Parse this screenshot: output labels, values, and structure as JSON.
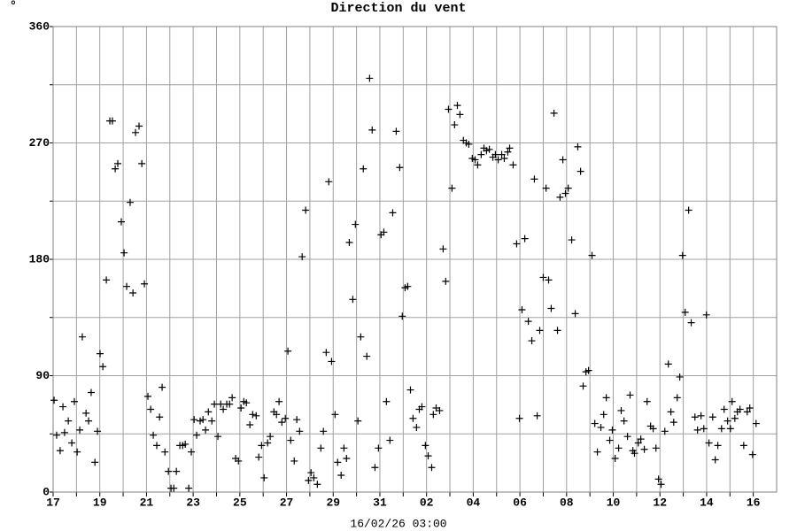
{
  "chart_data": {
    "type": "scatter",
    "title": "Direction du vent",
    "y_unit_label": "°",
    "xlabel": "16/02/26 03:00",
    "marker": "+",
    "color": "#000000",
    "grid": true,
    "xlim": [
      0,
      31
    ],
    "ylim": [
      0,
      360
    ],
    "yticks": [
      0,
      {
        "value": 45,
        "label": null
      },
      90,
      {
        "value": 135,
        "label": null
      },
      180,
      {
        "value": 225,
        "label": null
      },
      270,
      {
        "value": 315,
        "label": null
      },
      360
    ],
    "xticks": [
      {
        "value": 0,
        "label": "17"
      },
      {
        "value": 1,
        "label": null
      },
      {
        "value": 2,
        "label": "19"
      },
      {
        "value": 3,
        "label": null
      },
      {
        "value": 4,
        "label": "21"
      },
      {
        "value": 5,
        "label": null
      },
      {
        "value": 6,
        "label": "23"
      },
      {
        "value": 7,
        "label": null
      },
      {
        "value": 8,
        "label": "25"
      },
      {
        "value": 9,
        "label": null
      },
      {
        "value": 10,
        "label": "27"
      },
      {
        "value": 11,
        "label": null
      },
      {
        "value": 12,
        "label": "29"
      },
      {
        "value": 13,
        "label": null
      },
      {
        "value": 14,
        "label": "31"
      },
      {
        "value": 15,
        "label": null
      },
      {
        "value": 16,
        "label": "02"
      },
      {
        "value": 17,
        "label": null
      },
      {
        "value": 18,
        "label": "04"
      },
      {
        "value": 19,
        "label": null
      },
      {
        "value": 20,
        "label": "06"
      },
      {
        "value": 21,
        "label": null
      },
      {
        "value": 22,
        "label": "08"
      },
      {
        "value": 23,
        "label": null
      },
      {
        "value": 24,
        "label": "10"
      },
      {
        "value": 25,
        "label": null
      },
      {
        "value": 26,
        "label": "12"
      },
      {
        "value": 27,
        "label": null
      },
      {
        "value": 28,
        "label": "14"
      },
      {
        "value": 29,
        "label": null
      },
      {
        "value": 30,
        "label": "16"
      }
    ],
    "x": [
      0.04,
      0.15,
      0.3,
      0.42,
      0.49,
      0.65,
      0.8,
      0.91,
      1.03,
      1.14,
      1.25,
      1.41,
      1.52,
      1.63,
      1.79,
      1.9,
      2.01,
      2.13,
      2.28,
      2.43,
      2.54,
      2.66,
      2.77,
      2.92,
      3.04,
      3.15,
      3.3,
      3.42,
      3.53,
      3.68,
      3.8,
      3.91,
      4.06,
      4.18,
      4.29,
      4.44,
      4.56,
      4.67,
      4.79,
      4.94,
      5.05,
      5.17,
      5.28,
      5.43,
      5.55,
      5.66,
      5.81,
      5.92,
      6.04,
      6.15,
      6.3,
      6.42,
      6.53,
      6.65,
      6.8,
      6.91,
      7.06,
      7.18,
      7.29,
      7.44,
      7.56,
      7.67,
      7.82,
      7.94,
      8.05,
      8.17,
      8.28,
      8.43,
      8.55,
      8.7,
      8.81,
      8.93,
      9.04,
      9.19,
      9.3,
      9.46,
      9.57,
      9.68,
      9.8,
      9.95,
      10.06,
      10.18,
      10.33,
      10.44,
      10.56,
      10.67,
      10.82,
      10.94,
      11.05,
      11.17,
      11.32,
      11.47,
      11.58,
      11.7,
      11.81,
      11.93,
      12.08,
      12.19,
      12.34,
      12.46,
      12.57,
      12.69,
      12.84,
      12.95,
      13.06,
      13.18,
      13.29,
      13.44,
      13.56,
      13.67,
      13.79,
      13.94,
      14.05,
      14.17,
      14.28,
      14.43,
      14.55,
      14.7,
      14.85,
      14.96,
      15.08,
      15.19,
      15.31,
      15.42,
      15.57,
      15.69,
      15.8,
      15.95,
      16.07,
      16.22,
      16.29,
      16.41,
      16.56,
      16.71,
      16.82,
      16.94,
      17.09,
      17.2,
      17.32,
      17.43,
      17.58,
      17.7,
      17.81,
      17.96,
      18.08,
      18.19,
      18.34,
      18.46,
      18.57,
      18.69,
      18.84,
      18.95,
      19.07,
      19.22,
      19.33,
      19.48,
      19.56,
      19.71,
      19.86,
      19.98,
      20.09,
      20.21,
      20.36,
      20.51,
      20.62,
      20.74,
      20.85,
      21.0,
      21.12,
      21.23,
      21.34,
      21.46,
      21.61,
      21.72,
      21.84,
      21.95,
      22.07,
      22.22,
      22.37,
      22.48,
      22.6,
      22.71,
      22.83,
      22.94,
      23.09,
      23.21,
      23.32,
      23.47,
      23.59,
      23.7,
      23.85,
      23.96,
      24.08,
      24.23,
      24.34,
      24.46,
      24.61,
      24.72,
      24.84,
      24.91,
      25.07,
      25.18,
      25.33,
      25.45,
      25.6,
      25.71,
      25.83,
      25.94,
      26.05,
      26.21,
      26.36,
      26.47,
      26.59,
      26.74,
      26.85,
      26.97,
      27.08,
      27.23,
      27.34,
      27.5,
      27.61,
      27.76,
      27.88,
      27.99,
      28.1,
      28.26,
      28.37,
      28.48,
      28.64,
      28.75,
      28.9,
      29.02,
      29.09,
      29.21,
      29.32,
      29.43,
      29.59,
      29.74,
      29.85,
      29.97,
      30.12
    ],
    "values": [
      71,
      44,
      32,
      66,
      46,
      55,
      38,
      70,
      31,
      48,
      120,
      61,
      55,
      77,
      23,
      47,
      107,
      97,
      164,
      287,
      287,
      250,
      254,
      209,
      185,
      159,
      224,
      154,
      278,
      283,
      254,
      161,
      74,
      64,
      44,
      36,
      58,
      81,
      31,
      16,
      3,
      3,
      16,
      36,
      36,
      37,
      3,
      31,
      56,
      44,
      55,
      56,
      48,
      62,
      55,
      68,
      43,
      68,
      64,
      68,
      68,
      73,
      26,
      24,
      65,
      70,
      69,
      52,
      60,
      59,
      27,
      36,
      11,
      38,
      43,
      62,
      60,
      70,
      54,
      57,
      109,
      40,
      24,
      56,
      47,
      182,
      218,
      9,
      15,
      11,
      6,
      34,
      47,
      108,
      240,
      101,
      60,
      23,
      13,
      34,
      26,
      193,
      149,
      207,
      55,
      120,
      250,
      105,
      320,
      280,
      19,
      34,
      199,
      201,
      70,
      40,
      216,
      279,
      251,
      136,
      158,
      159,
      79,
      57,
      50,
      64,
      66,
      36,
      28,
      19,
      60,
      65,
      63,
      188,
      163,
      296,
      235,
      284,
      299,
      292,
      272,
      270,
      269,
      258,
      257,
      253,
      261,
      266,
      264,
      265,
      259,
      261,
      257,
      261,
      258,
      263,
      266,
      253,
      192,
      57,
      141,
      196,
      132,
      117,
      242,
      59,
      125,
      166,
      235,
      164,
      142,
      293,
      125,
      228,
      257,
      231,
      235,
      195,
      138,
      267,
      248,
      82,
      93,
      94,
      183,
      53,
      31,
      50,
      60,
      73,
      40,
      48,
      26,
      34,
      63,
      55,
      43,
      75,
      32,
      30,
      38,
      41,
      33,
      70,
      51,
      49,
      34,
      10,
      6,
      47,
      99,
      62,
      54,
      73,
      89,
      183,
      139,
      218,
      131,
      58,
      48,
      59,
      49,
      137,
      38,
      58,
      25,
      36,
      49,
      64,
      55,
      49,
      70,
      57,
      62,
      64,
      36,
      62,
      65,
      29,
      53
    ]
  }
}
